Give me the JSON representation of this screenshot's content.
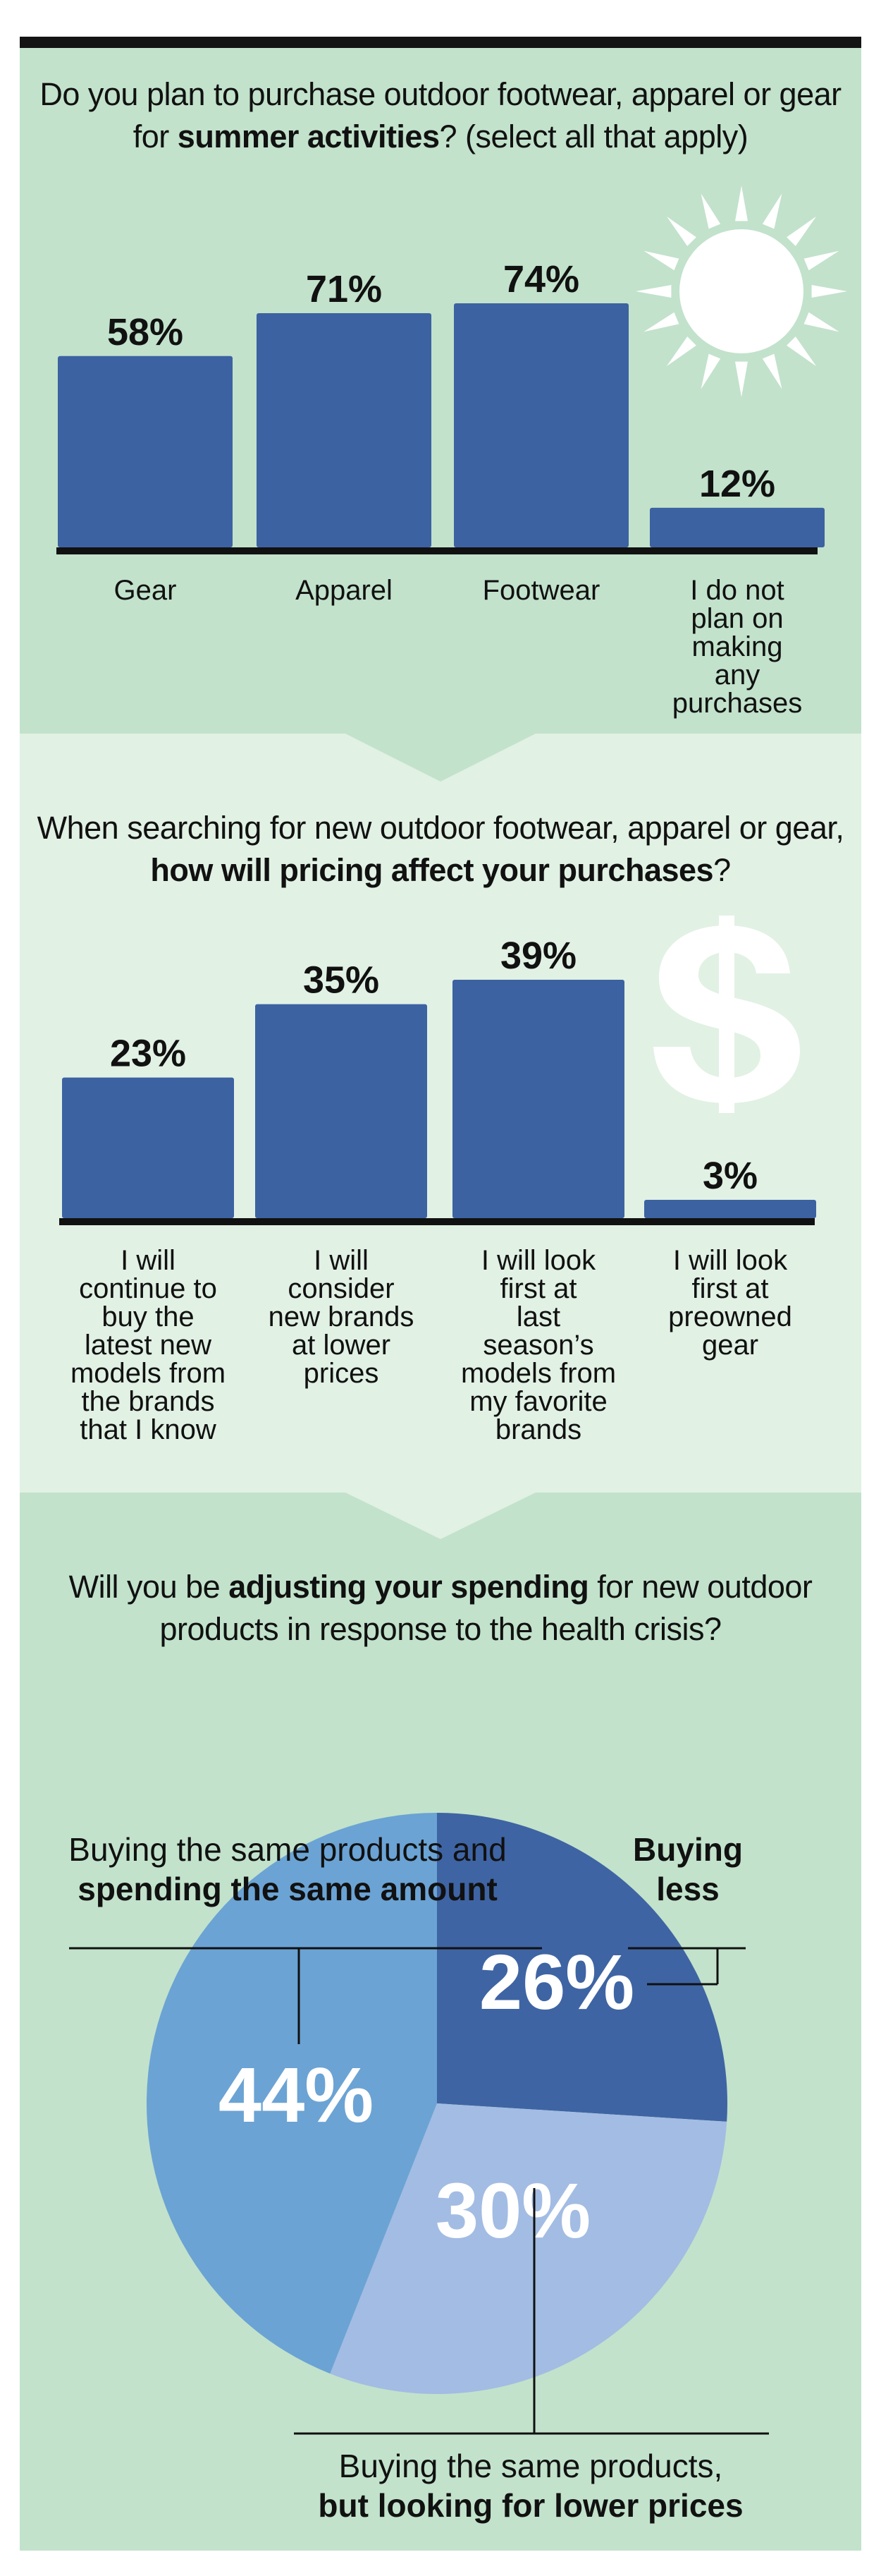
{
  "colors": {
    "bar": "#3c62a2",
    "panel_dark": "#c2e2cb",
    "panel_light": "#e1f1e4",
    "axis": "#111111",
    "pie_less": "#3e64a3",
    "pie_lower_prices": "#a3bce3",
    "pie_same": "#6ba3d4"
  },
  "icons": [
    "sun-icon",
    "dollar-icon"
  ],
  "chart_data": [
    {
      "type": "bar",
      "title_parts": [
        "Do you plan to purchase outdoor footwear, apparel or gear for ",
        "summer activities",
        "? (select all that apply)"
      ],
      "categories": [
        "Gear",
        "Apparel",
        "Footwear",
        "I do not plan on making any purchases"
      ],
      "values": [
        58,
        71,
        74,
        12
      ],
      "value_labels": [
        "58%",
        "71%",
        "74%",
        "12%"
      ],
      "unit": "%",
      "ylim": [
        0,
        100
      ],
      "grid": false,
      "legend": "none"
    },
    {
      "type": "bar",
      "title_parts": [
        "When searching for new outdoor footwear, apparel or gear, ",
        "how will pricing affect your purchases",
        "?"
      ],
      "categories": [
        "I will continue to buy the latest new models from the brands that I know",
        "I will consider new brands at lower prices",
        "I will look first at last season’s models from my favorite brands",
        "I will look first at preowned gear"
      ],
      "values": [
        23,
        35,
        39,
        3
      ],
      "value_labels": [
        "23%",
        "35%",
        "39%",
        "3%"
      ],
      "unit": "%",
      "ylim": [
        0,
        100
      ],
      "grid": false,
      "legend": "none"
    },
    {
      "type": "pie",
      "title_parts": [
        "Will you be ",
        "adjusting your spending",
        " for new outdoor products in response to the health crisis?"
      ],
      "slices": [
        {
          "label_parts": [
            "",
            "Buying less"
          ],
          "value": 26,
          "value_label": "26%"
        },
        {
          "label_parts": [
            "Buying the same products, ",
            "but looking for lower prices"
          ],
          "value": 30,
          "value_label": "30%"
        },
        {
          "label_parts": [
            "Buying the same products and ",
            "spending the same amount"
          ],
          "value": 44,
          "value_label": "44%"
        }
      ],
      "unit": "%"
    }
  ]
}
